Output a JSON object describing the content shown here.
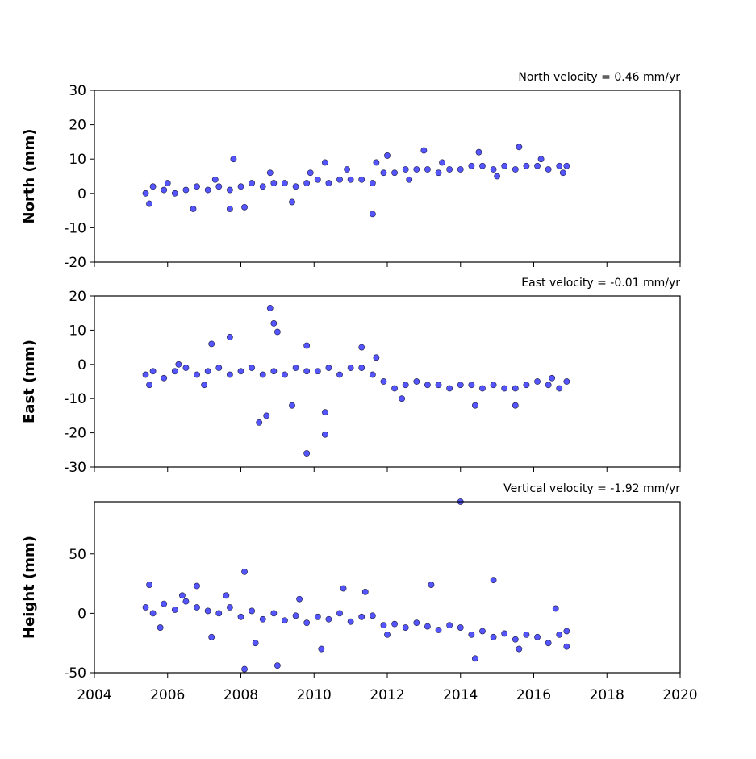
{
  "chart_data": [
    {
      "type": "scatter",
      "title": "North velocity = 0.46 mm/yr",
      "ylabel": "North (mm)",
      "color": "#5555ff",
      "x": [
        2005.4,
        2005.6,
        2005.9,
        2006.2,
        2006.5,
        2006.8,
        2007.1,
        2007.4,
        2007.7,
        2008.0,
        2008.3,
        2008.6,
        2008.9,
        2009.2,
        2009.5,
        2009.8,
        2010.1,
        2010.4,
        2010.7,
        2011.0,
        2011.3,
        2011.6,
        2011.9,
        2012.2,
        2012.5,
        2012.8,
        2013.1,
        2013.4,
        2013.7,
        2014.0,
        2014.3,
        2014.6,
        2014.9,
        2015.2,
        2015.5,
        2015.8,
        2016.1,
        2016.4,
        2016.7,
        2016.9,
        2005.5,
        2006.0,
        2006.7,
        2007.3,
        2007.7,
        2007.8,
        2008.1,
        2008.8,
        2009.4,
        2009.9,
        2010.3,
        2010.9,
        2011.6,
        2011.7,
        2012.0,
        2012.6,
        2013.0,
        2013.5,
        2014.5,
        2015.0,
        2015.6,
        2016.2,
        2016.8
      ],
      "values": [
        0,
        2,
        1,
        0,
        1,
        2,
        1,
        2,
        1,
        2,
        3,
        2,
        3,
        3,
        2,
        3,
        4,
        3,
        4,
        4,
        4,
        3,
        6,
        6,
        7,
        7,
        7,
        6,
        7,
        7,
        8,
        8,
        7,
        8,
        7,
        8,
        8,
        7,
        8,
        8,
        -3,
        3,
        -4.5,
        4,
        -4.5,
        10,
        -4,
        6,
        -2.5,
        6,
        9,
        7,
        -6,
        9,
        11,
        4,
        12.5,
        9,
        12,
        5,
        13.5,
        10,
        6
      ],
      "xlim": [
        2004,
        2020
      ],
      "ylim": [
        -20,
        30
      ],
      "xticks": [
        2004,
        2006,
        2008,
        2010,
        2012,
        2014,
        2016,
        2018,
        2020
      ],
      "yticks": [
        -20,
        -10,
        0,
        10,
        20,
        30
      ]
    },
    {
      "type": "scatter",
      "title": "East velocity = -0.01 mm/yr",
      "ylabel": "East (mm)",
      "color": "#5555ff",
      "x": [
        2005.4,
        2005.6,
        2005.9,
        2006.2,
        2006.5,
        2006.8,
        2007.1,
        2007.4,
        2007.7,
        2008.0,
        2008.3,
        2008.6,
        2008.9,
        2009.2,
        2009.5,
        2009.8,
        2010.1,
        2010.4,
        2010.7,
        2011.0,
        2011.3,
        2011.6,
        2011.9,
        2012.2,
        2012.5,
        2012.8,
        2013.1,
        2013.4,
        2013.7,
        2014.0,
        2014.3,
        2014.6,
        2014.9,
        2015.2,
        2015.5,
        2015.8,
        2016.1,
        2016.4,
        2016.7,
        2016.9,
        2005.5,
        2006.3,
        2007.0,
        2007.2,
        2007.7,
        2008.5,
        2008.7,
        2008.8,
        2008.9,
        2009.0,
        2009.4,
        2009.8,
        2009.8,
        2010.3,
        2010.3,
        2011.3,
        2011.7,
        2012.4,
        2014.4,
        2015.5,
        2016.5
      ],
      "values": [
        -3,
        -2,
        -4,
        -2,
        -1,
        -3,
        -2,
        -1,
        -3,
        -2,
        -1,
        -3,
        -2,
        -3,
        -1,
        -2,
        -2,
        -1,
        -3,
        -1,
        -1,
        -3,
        -5,
        -7,
        -6,
        -5,
        -6,
        -6,
        -7,
        -6,
        -6,
        -7,
        -6,
        -7,
        -7,
        -6,
        -5,
        -6,
        -7,
        -5,
        -6,
        0,
        -6,
        6,
        8,
        -17,
        -15,
        16.5,
        12,
        9.5,
        -12,
        5.5,
        -26,
        -20.5,
        -14,
        5,
        2,
        -10,
        -12,
        -12,
        -4
      ],
      "xlim": [
        2004,
        2020
      ],
      "ylim": [
        -30,
        20
      ],
      "xticks": [
        2004,
        2006,
        2008,
        2010,
        2012,
        2014,
        2016,
        2018,
        2020
      ],
      "yticks": [
        -30,
        -20,
        -10,
        0,
        10,
        20
      ]
    },
    {
      "type": "scatter",
      "title": "Vertical velocity = -1.92 mm/yr",
      "ylabel": "Height (mm)",
      "color": "#5555ff",
      "x": [
        2005.4,
        2005.6,
        2005.9,
        2006.2,
        2006.5,
        2006.8,
        2007.1,
        2007.4,
        2007.7,
        2008.0,
        2008.3,
        2008.6,
        2008.9,
        2009.2,
        2009.5,
        2009.8,
        2010.1,
        2010.4,
        2010.7,
        2011.0,
        2011.3,
        2011.6,
        2011.9,
        2012.2,
        2012.5,
        2012.8,
        2013.1,
        2013.4,
        2013.7,
        2014.0,
        2014.3,
        2014.6,
        2014.9,
        2015.2,
        2015.5,
        2015.8,
        2016.1,
        2016.4,
        2016.7,
        2016.9,
        2005.5,
        2005.8,
        2006.4,
        2006.8,
        2007.2,
        2007.6,
        2008.1,
        2008.1,
        2008.4,
        2009.0,
        2009.6,
        2010.2,
        2010.8,
        2011.4,
        2012.0,
        2013.2,
        2014.0,
        2014.4,
        2014.9,
        2015.6,
        2016.6,
        2016.9
      ],
      "values": [
        5,
        0,
        8,
        3,
        10,
        5,
        2,
        0,
        5,
        -3,
        2,
        -5,
        0,
        -6,
        -2,
        -8,
        -3,
        -5,
        0,
        -7,
        -3,
        -2,
        -10,
        -9,
        -12,
        -8,
        -11,
        -14,
        -10,
        -12,
        -18,
        -15,
        -20,
        -17,
        -22,
        -18,
        -20,
        -25,
        -18,
        -15,
        24,
        -12,
        15,
        23,
        -20,
        15,
        35,
        -47,
        -25,
        -44,
        12,
        -30,
        21,
        18,
        -18,
        24,
        94,
        -38,
        28,
        -30,
        4,
        -28
      ],
      "xlim": [
        2004,
        2020
      ],
      "ylim": [
        -50,
        94
      ],
      "xticks": [
        2004,
        2006,
        2008,
        2010,
        2012,
        2014,
        2016,
        2018,
        2020
      ],
      "yticks": [
        -50,
        0,
        50
      ]
    }
  ]
}
